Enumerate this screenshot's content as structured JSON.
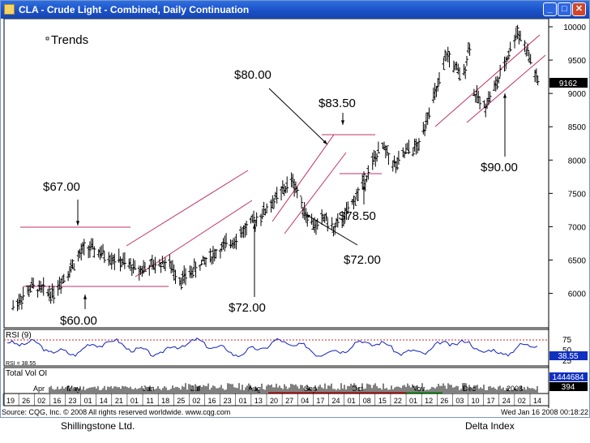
{
  "window": {
    "title": "CLA - Crude Light - Combined, Daily Continuation",
    "buttons": {
      "minimize": "_",
      "maximize": "□",
      "close": "✕"
    }
  },
  "footer": {
    "source": "Source: CQG, Inc. © 2008 All rights reserved worldwide. www.cqg.com",
    "timestamp": "Wed Jan 16 2008 00:18:22",
    "company": "Shillingstone Ltd.",
    "brand": "Delta Index"
  },
  "chart_data": {
    "type": "ohlc",
    "title": "Trends",
    "price_axis": {
      "ticks": [
        "10000",
        "9500",
        "9000",
        "8500",
        "8000",
        "7500",
        "7000",
        "6500",
        "6000"
      ],
      "ylim": [
        5600,
        10300
      ],
      "last_price": "9162"
    },
    "annotations": [
      {
        "text": "$67.00"
      },
      {
        "text": "$60.00"
      },
      {
        "text": "$80.00"
      },
      {
        "text": "$72.00",
        "id": "aug"
      },
      {
        "text": "$83.50"
      },
      {
        "text": "$78.50"
      },
      {
        "text": "$72.00",
        "id": "sep"
      },
      {
        "text": "$90.00"
      }
    ],
    "anchors": [
      {
        "date": "2007-01-19",
        "price": 5800
      },
      {
        "date": "2007-02-01",
        "price": 6100
      },
      {
        "date": "2007-02-15",
        "price": 6000
      },
      {
        "date": "2007-03-10",
        "price": 6700
      },
      {
        "date": "2007-04-01",
        "price": 6500
      },
      {
        "date": "2007-04-15",
        "price": 6350
      },
      {
        "date": "2007-05-05",
        "price": 6480
      },
      {
        "date": "2007-05-15",
        "price": 6200
      },
      {
        "date": "2007-06-01",
        "price": 6500
      },
      {
        "date": "2007-06-20",
        "price": 6800
      },
      {
        "date": "2007-07-10",
        "price": 7200
      },
      {
        "date": "2007-07-31",
        "price": 7700
      },
      {
        "date": "2007-08-05",
        "price": 7400
      },
      {
        "date": "2007-08-10",
        "price": 7150
      },
      {
        "date": "2007-08-16",
        "price": 7000
      },
      {
        "date": "2007-08-22",
        "price": 7150
      },
      {
        "date": "2007-08-28",
        "price": 6950
      },
      {
        "date": "2007-09-05",
        "price": 7150
      },
      {
        "date": "2007-09-15",
        "price": 7550
      },
      {
        "date": "2007-09-25",
        "price": 8000
      },
      {
        "date": "2007-10-01",
        "price": 8200
      },
      {
        "date": "2007-10-10",
        "price": 7900
      },
      {
        "date": "2007-10-18",
        "price": 8150
      },
      {
        "date": "2007-10-26",
        "price": 8200
      },
      {
        "date": "2007-11-01",
        "price": 8700
      },
      {
        "date": "2007-11-10",
        "price": 9200
      },
      {
        "date": "2007-11-14",
        "price": 9600
      },
      {
        "date": "2007-11-25",
        "price": 9200
      },
      {
        "date": "2007-11-30",
        "price": 9750
      },
      {
        "date": "2007-12-03",
        "price": 9000
      },
      {
        "date": "2007-12-10",
        "price": 8800
      },
      {
        "date": "2007-12-20",
        "price": 9200
      },
      {
        "date": "2008-01-02",
        "price": 9950
      },
      {
        "date": "2008-01-10",
        "price": 9550
      },
      {
        "date": "2008-01-16",
        "price": 9162
      }
    ],
    "rsi": {
      "label": "RSI (9)",
      "lower_label": "RSI = 38.55",
      "ticks": [
        "75",
        "50",
        "25"
      ],
      "ylim": [
        0,
        100
      ],
      "upper_line": 70,
      "last": "38.55"
    },
    "volume": {
      "label": "Total Vol OI",
      "readout1": "1444684",
      "readout2": "394"
    },
    "date_axis": {
      "months": [
        "Apr",
        "May",
        "Jun",
        "Jul",
        "Aug",
        "Sep",
        "Oct",
        "Nov",
        "Dec",
        "2008"
      ],
      "days": [
        "19",
        "26",
        "02",
        "16",
        "23",
        "01",
        "14",
        "21",
        "01",
        "11",
        "18",
        "25",
        "02",
        "16",
        "23",
        "01",
        "13",
        "20",
        "27",
        "04",
        "17",
        "24",
        "01",
        "08",
        "15",
        "22",
        "01",
        "12",
        "26",
        "03",
        "10",
        "17",
        "24",
        "02",
        "14"
      ]
    },
    "colors": {
      "bars": "#000000",
      "channel": "#c0306a",
      "rsi_line": "#1020c0",
      "rsi_level": "#d02020",
      "readout_bg": "#1030c0",
      "grid": "#d0d0d0"
    }
  }
}
